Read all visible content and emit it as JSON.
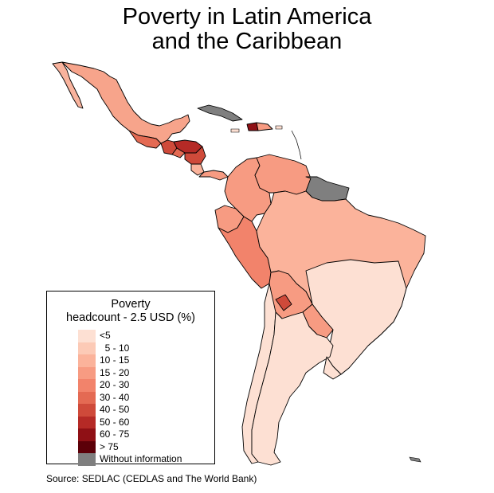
{
  "title_line1": "Poverty in Latin America",
  "title_line2": "and the Caribbean",
  "legend": {
    "title_line1": "Poverty",
    "title_line2": "headcount - 2.5 USD (%)",
    "items": [
      {
        "label": "<5",
        "color": "#fde0d3"
      },
      {
        "label": "  5 - 10",
        "color": "#fccab6"
      },
      {
        "label": "10 - 15",
        "color": "#fbb39b"
      },
      {
        "label": "15 - 20",
        "color": "#f79b82"
      },
      {
        "label": "20 - 30",
        "color": "#f2836b"
      },
      {
        "label": "30 - 40",
        "color": "#e46a53"
      },
      {
        "label": "40 - 50",
        "color": "#cf4a3a"
      },
      {
        "label": "50 - 60",
        "color": "#b52a26"
      },
      {
        "label": "60 - 75",
        "color": "#8f1015"
      },
      {
        "label": "> 75",
        "color": "#5c0008"
      },
      {
        "label": "Without information",
        "color": "#7f7f7f"
      }
    ]
  },
  "source": "Source: SEDLAC (CEDLAS and The World Bank)"
}
